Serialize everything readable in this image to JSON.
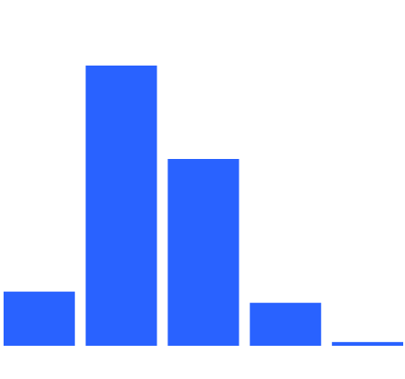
{
  "chart_data": {
    "type": "bar",
    "title": "",
    "xlabel": "",
    "ylabel": "",
    "values": [
      14.5,
      75,
      50,
      11.5,
      1
    ],
    "ylim": [
      0,
      100
    ],
    "grid": false,
    "legend": false,
    "bar_color": "#2962ff"
  }
}
